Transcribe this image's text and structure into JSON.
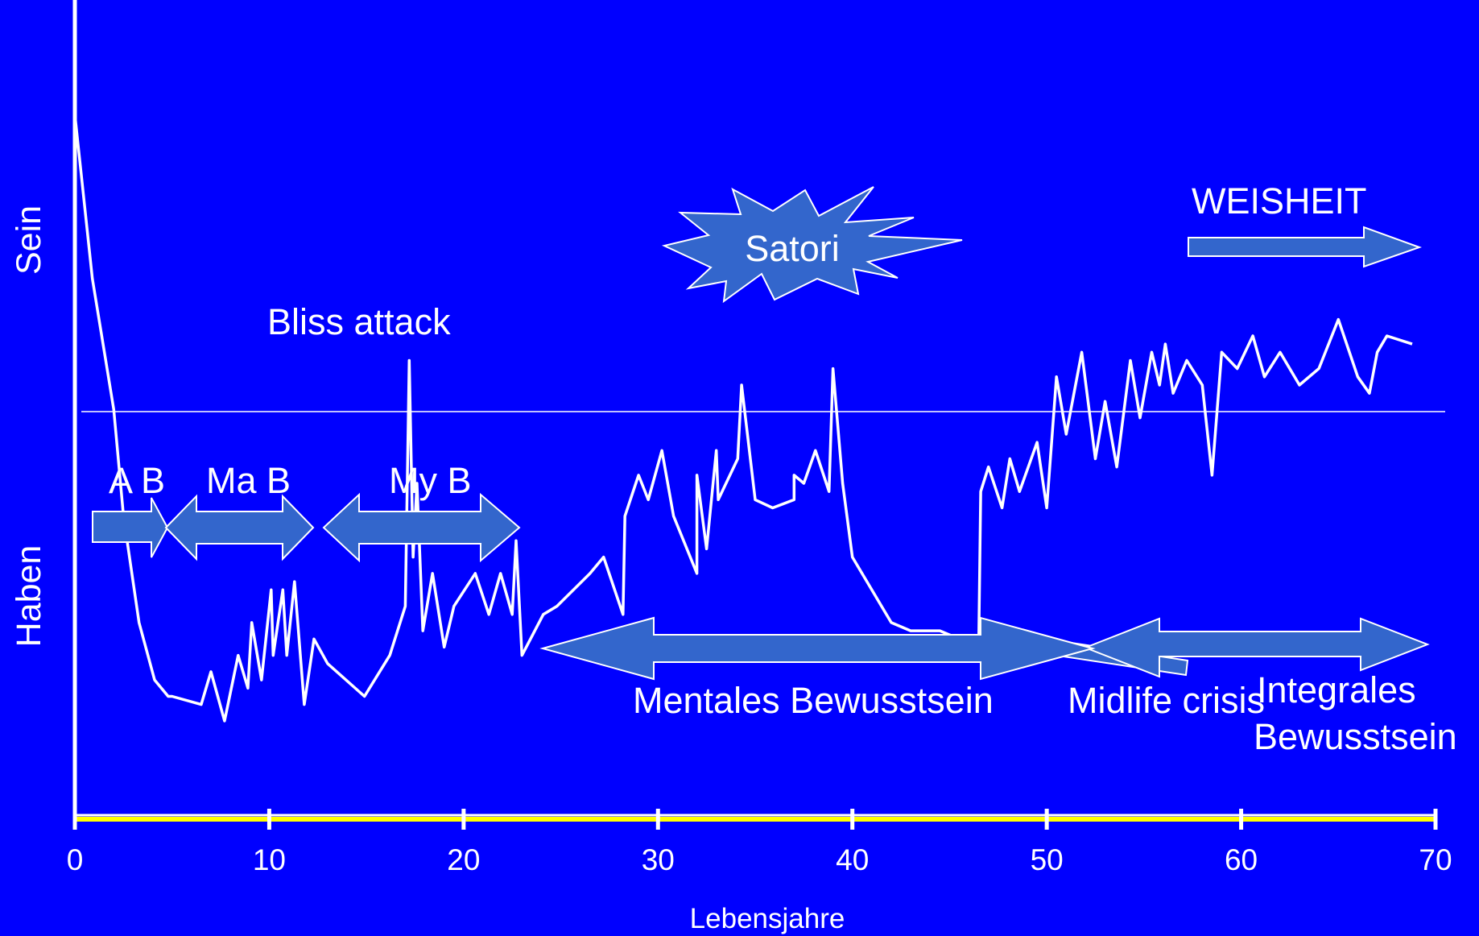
{
  "chart_data": {
    "type": "line",
    "title": "",
    "xlabel": "Lebensjahre",
    "ylabel_top": "Sein",
    "ylabel_bottom": "Haben",
    "xlim": [
      0,
      70
    ],
    "x_ticks": [
      0,
      10,
      20,
      30,
      40,
      50,
      60,
      70
    ],
    "x_tick_labels": [
      "0",
      "10",
      "20",
      "30",
      "40",
      "50",
      "60",
      "70"
    ],
    "grid": false,
    "colors": {
      "background": "#0000ff",
      "line": "#ffffff",
      "x_axis": "#ffff00",
      "arrow_fill": "#3366cc"
    },
    "series": [
      {
        "values": [
          [
            0.0,
            0.86
          ],
          [
            0.9,
            0.66
          ],
          [
            2.0,
            0.5
          ],
          [
            2.5,
            0.37
          ],
          [
            3.3,
            0.24
          ],
          [
            4.1,
            0.17
          ],
          [
            4.8,
            0.15
          ],
          [
            5.0,
            0.15
          ],
          [
            6.5,
            0.14
          ],
          [
            7.0,
            0.18
          ],
          [
            7.7,
            0.12
          ],
          [
            8.4,
            0.2
          ],
          [
            8.9,
            0.16
          ],
          [
            9.1,
            0.24
          ],
          [
            9.6,
            0.17
          ],
          [
            10.1,
            0.28
          ],
          [
            10.2,
            0.2
          ],
          [
            10.7,
            0.28
          ],
          [
            10.9,
            0.2
          ],
          [
            11.3,
            0.29
          ],
          [
            11.8,
            0.14
          ],
          [
            12.3,
            0.22
          ],
          [
            13.0,
            0.19
          ],
          [
            14.9,
            0.15
          ],
          [
            16.2,
            0.2
          ],
          [
            17.0,
            0.26
          ],
          [
            17.2,
            0.56
          ],
          [
            17.4,
            0.32
          ],
          [
            17.6,
            0.41
          ],
          [
            17.9,
            0.23
          ],
          [
            18.4,
            0.3
          ],
          [
            19.0,
            0.21
          ],
          [
            19.5,
            0.26
          ],
          [
            20.6,
            0.3
          ],
          [
            21.3,
            0.25
          ],
          [
            21.9,
            0.3
          ],
          [
            22.5,
            0.25
          ],
          [
            22.7,
            0.34
          ],
          [
            23.0,
            0.2
          ],
          [
            24.1,
            0.25
          ],
          [
            24.8,
            0.26
          ],
          [
            26.5,
            0.3
          ],
          [
            27.2,
            0.32
          ],
          [
            28.2,
            0.25
          ],
          [
            28.3,
            0.37
          ],
          [
            29.0,
            0.42
          ],
          [
            29.5,
            0.39
          ],
          [
            30.2,
            0.45
          ],
          [
            30.8,
            0.37
          ],
          [
            32.0,
            0.3
          ],
          [
            32.0,
            0.42
          ],
          [
            32.5,
            0.33
          ],
          [
            33.0,
            0.45
          ],
          [
            33.1,
            0.39
          ],
          [
            34.1,
            0.44
          ],
          [
            34.3,
            0.53
          ],
          [
            35.0,
            0.39
          ],
          [
            35.9,
            0.38
          ],
          [
            37.0,
            0.39
          ],
          [
            37.0,
            0.42
          ],
          [
            37.5,
            0.41
          ],
          [
            38.1,
            0.45
          ],
          [
            38.8,
            0.4
          ],
          [
            39.0,
            0.55
          ],
          [
            39.5,
            0.41
          ],
          [
            40.0,
            0.32
          ],
          [
            42.0,
            0.24
          ],
          [
            43.0,
            0.23
          ],
          [
            44.5,
            0.23
          ],
          [
            46.5,
            0.21
          ],
          [
            46.6,
            0.4
          ],
          [
            47.0,
            0.43
          ],
          [
            47.7,
            0.38
          ],
          [
            48.1,
            0.44
          ],
          [
            48.6,
            0.4
          ],
          [
            49.5,
            0.46
          ],
          [
            50.0,
            0.38
          ],
          [
            50.5,
            0.54
          ],
          [
            51.0,
            0.47
          ],
          [
            51.8,
            0.57
          ],
          [
            52.5,
            0.44
          ],
          [
            53.0,
            0.51
          ],
          [
            53.6,
            0.43
          ],
          [
            54.3,
            0.56
          ],
          [
            54.8,
            0.49
          ],
          [
            55.4,
            0.57
          ],
          [
            55.8,
            0.53
          ],
          [
            56.1,
            0.58
          ],
          [
            56.5,
            0.52
          ],
          [
            57.2,
            0.56
          ],
          [
            58.0,
            0.53
          ],
          [
            58.5,
            0.42
          ],
          [
            59.0,
            0.57
          ],
          [
            59.8,
            0.55
          ],
          [
            60.6,
            0.59
          ],
          [
            61.2,
            0.54
          ],
          [
            62.0,
            0.57
          ],
          [
            63.0,
            0.53
          ],
          [
            64.0,
            0.55
          ],
          [
            65.0,
            0.61
          ],
          [
            66.0,
            0.54
          ],
          [
            66.6,
            0.52
          ],
          [
            67.0,
            0.57
          ],
          [
            67.5,
            0.59
          ],
          [
            68.8,
            0.58
          ]
        ]
      }
    ],
    "annotations": {
      "bliss_attack": "Bliss attack",
      "satori": "Satori",
      "weisheit": "WEISHEIT",
      "a_b": "A B",
      "ma_b": "Ma B",
      "my_b": "My B",
      "mentales": "Mentales Bewusstsein",
      "midlife": "Midlife crisis",
      "integrales_1": "Integrales",
      "integrales_2": "Bewusstsein"
    }
  }
}
